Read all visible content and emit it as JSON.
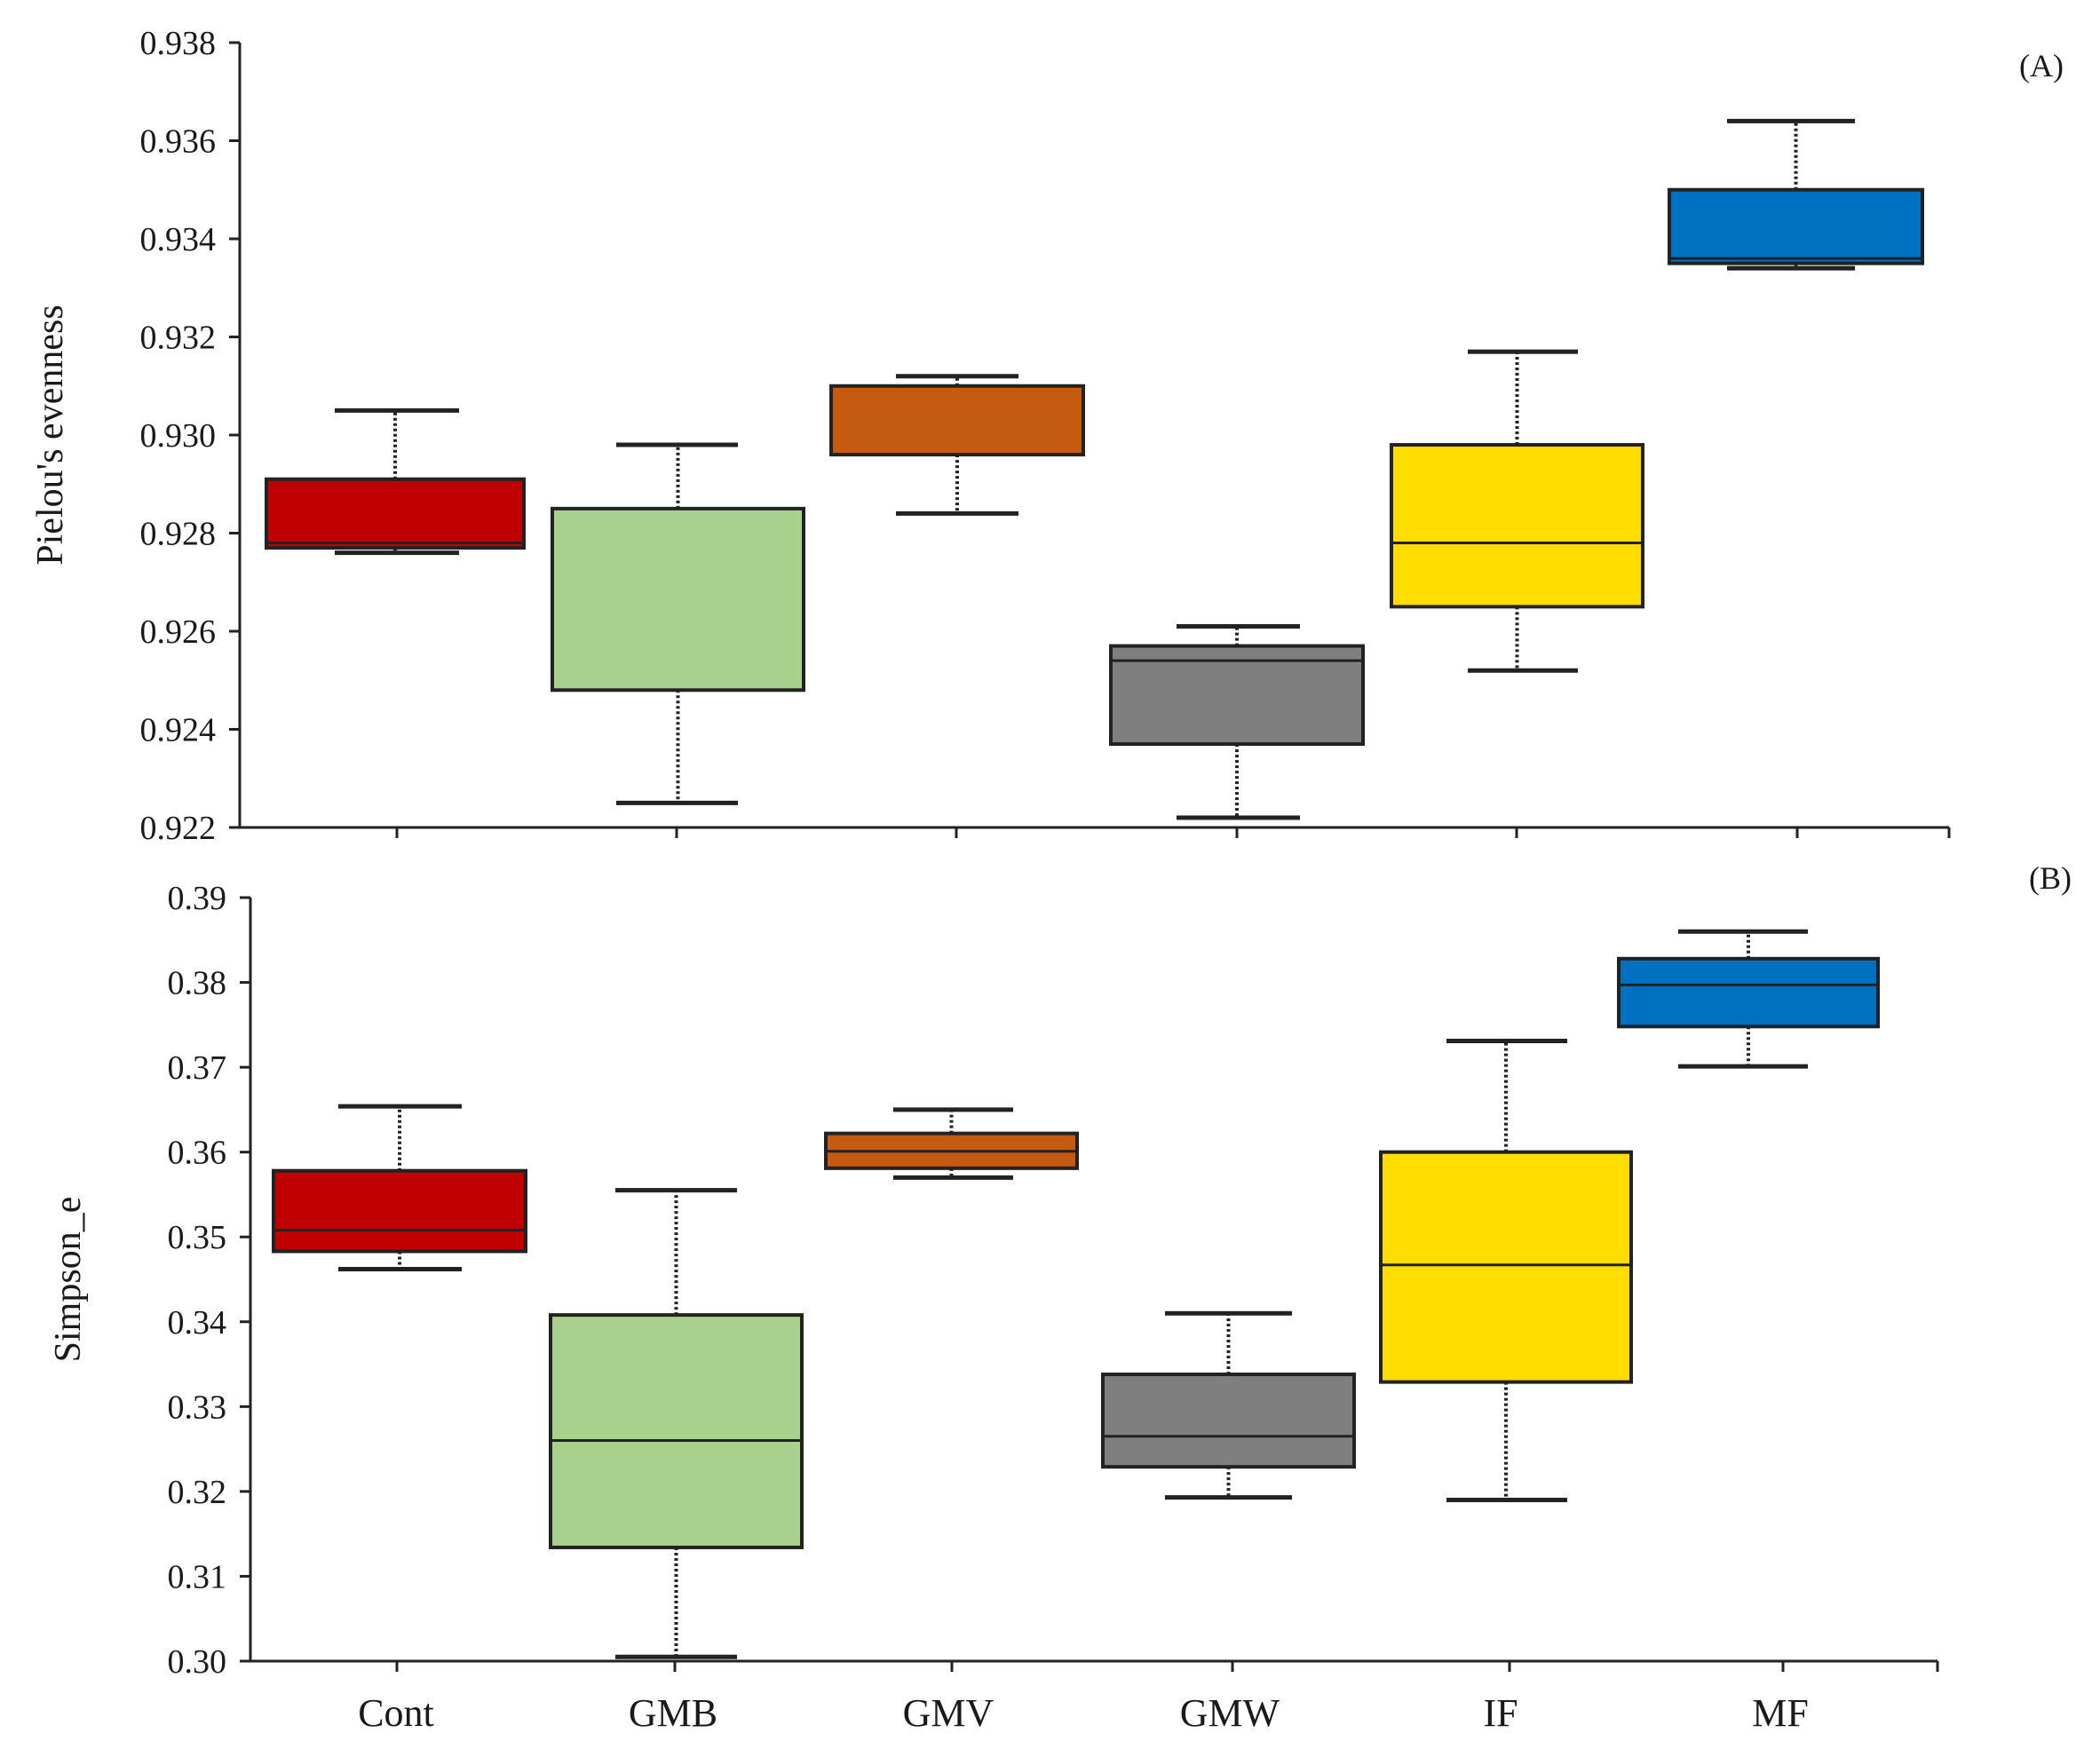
{
  "categories": [
    "Cont",
    "GMB",
    "GMV",
    "GMW",
    "IF",
    "MF"
  ],
  "colors": {
    "Cont": "#c00000",
    "GMB": "#a9d18e",
    "GMV": "#c55a11",
    "GMW": "#7f7f7f",
    "IF": "#ffdd00",
    "MF": "#0070c0"
  },
  "chart_data": [
    {
      "type": "box",
      "panel_label": "(A)",
      "ylabel": "Pielou's evenness",
      "ylim": [
        0.922,
        0.938
      ],
      "yticks": [
        "0.922",
        "0.924",
        "0.926",
        "0.928",
        "0.930",
        "0.932",
        "0.934",
        "0.936",
        "0.938"
      ],
      "categories": [
        "Cont",
        "GMB",
        "GMV",
        "GMW",
        "IF",
        "MF"
      ],
      "boxes": [
        {
          "category": "Cont",
          "min": 0.9276,
          "q1": 0.9277,
          "median": 0.9278,
          "q3": 0.9291,
          "max": 0.9305
        },
        {
          "category": "GMB",
          "min": 0.9225,
          "q1": 0.9248,
          "median": 0.9285,
          "q3": 0.9285,
          "max": 0.9298
        },
        {
          "category": "GMV",
          "min": 0.9284,
          "q1": 0.9296,
          "median": 0.931,
          "q3": 0.931,
          "max": 0.9312
        },
        {
          "category": "GMW",
          "min": 0.9222,
          "q1": 0.9237,
          "median": 0.9254,
          "q3": 0.9257,
          "max": 0.9261
        },
        {
          "category": "IF",
          "min": 0.9252,
          "q1": 0.9265,
          "median": 0.9278,
          "q3": 0.9298,
          "max": 0.9317
        },
        {
          "category": "MF",
          "min": 0.9334,
          "q1": 0.9335,
          "median": 0.9336,
          "q3": 0.935,
          "max": 0.9364
        }
      ]
    },
    {
      "type": "box",
      "panel_label": "(B)",
      "ylabel": "Simpson_e",
      "ylim": [
        0.3,
        0.39
      ],
      "yticks": [
        "0.30",
        "0.31",
        "0.32",
        "0.33",
        "0.34",
        "0.35",
        "0.36",
        "0.37",
        "0.38",
        "0.39"
      ],
      "categories": [
        "Cont",
        "GMB",
        "GMV",
        "GMW",
        "IF",
        "MF"
      ],
      "boxes": [
        {
          "category": "Cont",
          "min": 0.3462,
          "q1": 0.3483,
          "median": 0.3508,
          "q3": 0.3578,
          "max": 0.3654
        },
        {
          "category": "GMB",
          "min": 0.3005,
          "q1": 0.3134,
          "median": 0.326,
          "q3": 0.3408,
          "max": 0.3555
        },
        {
          "category": "GMV",
          "min": 0.357,
          "q1": 0.3581,
          "median": 0.3601,
          "q3": 0.3622,
          "max": 0.365
        },
        {
          "category": "GMW",
          "min": 0.3193,
          "q1": 0.3229,
          "median": 0.3265,
          "q3": 0.3338,
          "max": 0.341
        },
        {
          "category": "IF",
          "min": 0.319,
          "q1": 0.3329,
          "median": 0.3467,
          "q3": 0.36,
          "max": 0.3731
        },
        {
          "category": "MF",
          "min": 0.3701,
          "q1": 0.3748,
          "median": 0.3797,
          "q3": 0.3828,
          "max": 0.386
        }
      ]
    }
  ]
}
